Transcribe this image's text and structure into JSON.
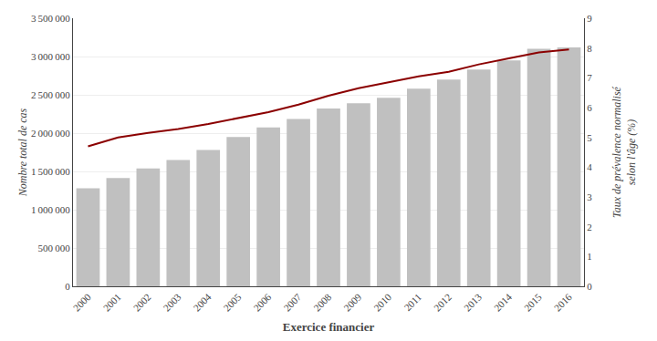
{
  "chart_data": {
    "type": "bar",
    "categories": [
      "2000",
      "2001",
      "2002",
      "2003",
      "2004",
      "2005",
      "2006",
      "2007",
      "2008",
      "2009",
      "2010",
      "2011",
      "2012",
      "2013",
      "2014",
      "2015",
      "2016"
    ],
    "series": [
      {
        "type": "bar",
        "color": "#c0c0c0",
        "values": [
          1280000,
          1415000,
          1540000,
          1650000,
          1780000,
          1950000,
          2075000,
          2185000,
          2320000,
          2390000,
          2460000,
          2580000,
          2700000,
          2830000,
          2950000,
          3100000,
          3120000
        ]
      },
      {
        "type": "line",
        "axis": "y2",
        "color": "#8B0000",
        "values": [
          4.7,
          5.0,
          5.15,
          5.28,
          5.45,
          5.65,
          5.85,
          6.1,
          6.4,
          6.65,
          6.85,
          7.05,
          7.2,
          7.45,
          7.65,
          7.85,
          7.95
        ]
      }
    ],
    "xlabel": "Exercice financier",
    "ylabel": "Nombre total de cas",
    "y2label": "Taux de prévalence normalisé\nselon l'âge (%)",
    "ylim": [
      0,
      3500000
    ],
    "yticks": [
      0,
      {
        "value": 500000,
        "label": "500 000"
      },
      {
        "value": 1000000,
        "label": "1 000 000"
      },
      {
        "value": 1500000,
        "label": "1 500 000"
      },
      {
        "value": 2000000,
        "label": "2 000 000"
      },
      {
        "value": 2500000,
        "label": "2 500 000"
      },
      {
        "value": 3000000,
        "label": "3 000 000"
      },
      {
        "value": 3500000,
        "label": "3 500 000"
      }
    ],
    "y2lim": [
      0,
      9
    ],
    "y2ticks": [
      0,
      1,
      2,
      3,
      4,
      5,
      6,
      7,
      8,
      9
    ],
    "grid": true
  }
}
